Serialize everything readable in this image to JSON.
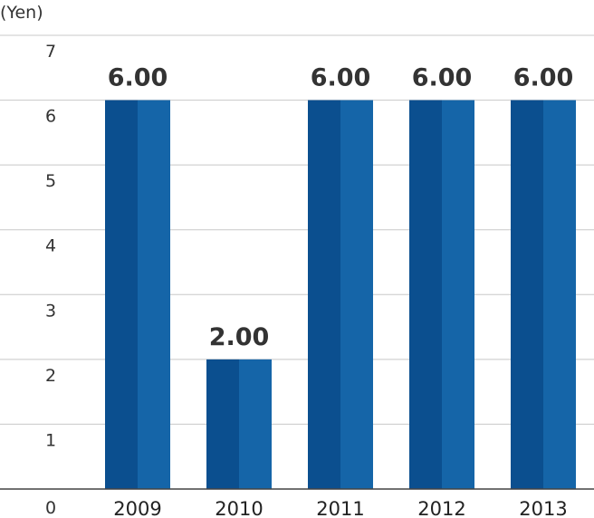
{
  "chart_data": {
    "type": "bar",
    "unit_label": "(Yen)",
    "categories": [
      "2009",
      "2010",
      "2011",
      "2012",
      "2013"
    ],
    "values": [
      6.0,
      2.0,
      6.0,
      6.0,
      6.0
    ],
    "data_labels": [
      "6.00",
      "2.00",
      "6.00",
      "6.00",
      "6.00"
    ],
    "ylim": [
      0,
      7
    ],
    "yticks": [
      0,
      1,
      2,
      3,
      4,
      5,
      6,
      7
    ],
    "grid": true,
    "colors": {
      "bar_dark": "#0b4f8f",
      "bar_light": "#1565a8"
    }
  }
}
